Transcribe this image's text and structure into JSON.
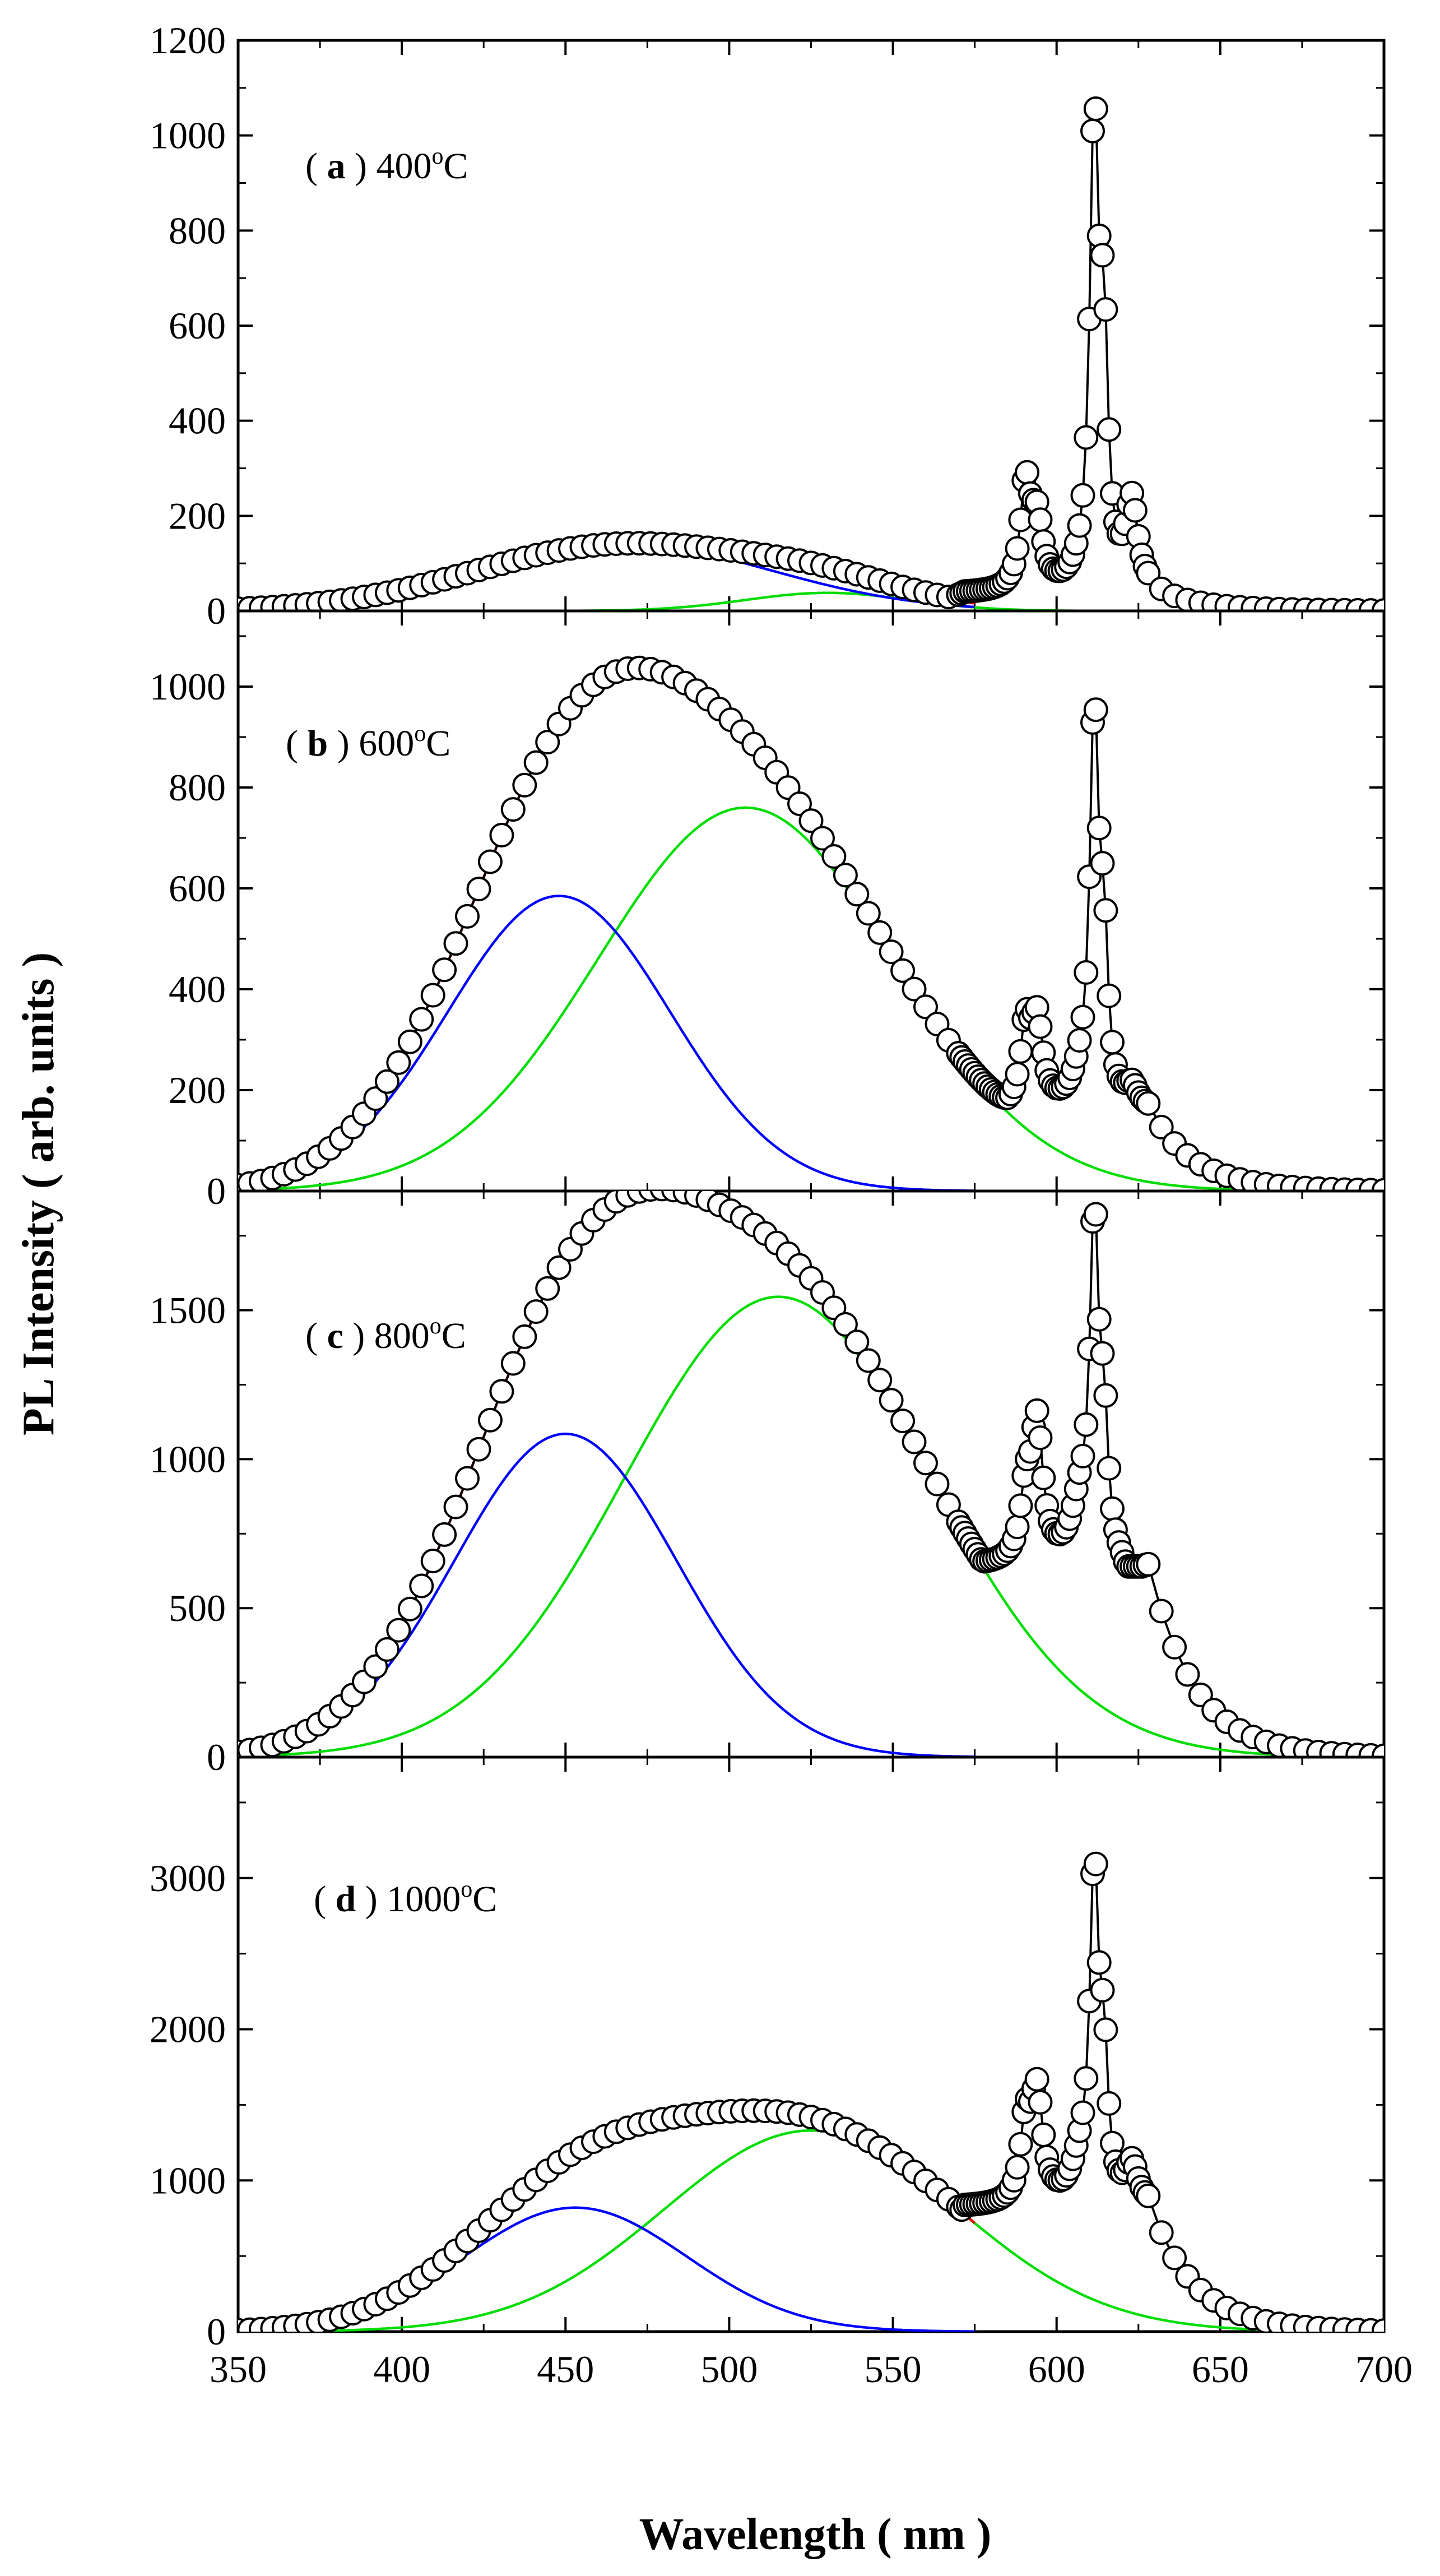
{
  "chart_data": {
    "type": "line",
    "title": "",
    "xlabel": "Wavelength ( nm )",
    "ylabel": "PL Intensity ( arb. units )",
    "xlim": [
      350,
      700
    ],
    "xticks": [
      350,
      400,
      450,
      500,
      550,
      600,
      650,
      700
    ],
    "xtick_labels": [
      "350",
      "400",
      "450",
      "500",
      "550",
      "600",
      "650",
      "700"
    ],
    "colors": {
      "measured": "#000000",
      "fit_total": "#ff0000",
      "component_blue": "#0000ff",
      "component_green": "#00dd00"
    },
    "panels": [
      {
        "id": "a",
        "label_letter": "a",
        "label_temp": "400",
        "label_unit": "C",
        "label_deg": "o",
        "ylim": [
          0,
          1200
        ],
        "yticks": [
          0,
          200,
          400,
          600,
          800,
          1000,
          1200
        ],
        "ytick_labels": [
          "0",
          "200",
          "400",
          "600",
          "800",
          "1000",
          "1200"
        ],
        "gauss_blue": {
          "amplitude": 140,
          "center": 468,
          "sigma": 45
        },
        "gauss_green": {
          "amplitude": 38,
          "center": 530,
          "sigma": 25
        },
        "peaks": {
          "scale": 1,
          "base_red": 35,
          "p590": 250,
          "p612": 1020,
          "p615": 810,
          "p623": 215
        }
      },
      {
        "id": "b",
        "label_letter": "b",
        "label_temp": "600",
        "label_unit": "C",
        "label_deg": "o",
        "ylim": [
          0,
          1150
        ],
        "yticks": [
          0,
          200,
          400,
          600,
          800,
          1000
        ],
        "ytick_labels": [
          "0",
          "200",
          "400",
          "600",
          "800",
          "1000"
        ],
        "gauss_blue": {
          "amplitude": 585,
          "center": 448,
          "sigma": 34
        },
        "gauss_green": {
          "amplitude": 760,
          "center": 505,
          "sigma": 45
        },
        "peaks": {
          "scale": 1,
          "base_red": 155,
          "p590": 305,
          "p612": 940,
          "p615": 635,
          "p623": 195
        }
      },
      {
        "id": "c",
        "label_letter": "c",
        "label_temp": "800",
        "label_unit": "C",
        "label_deg": "o",
        "ylim": [
          0,
          1900
        ],
        "yticks": [
          0,
          500,
          1000,
          1500
        ],
        "ytick_labels": [
          "0",
          "500",
          "1000",
          "1500"
        ],
        "gauss_blue": {
          "amplitude": 1085,
          "center": 450,
          "sigma": 34
        },
        "gauss_green": {
          "amplitude": 1545,
          "center": 515,
          "sigma": 47
        },
        "peaks": {
          "scale": 1,
          "base_red": 640,
          "p590": 840,
          "p612": 1780,
          "p615": 1310,
          "p623": 560
        }
      },
      {
        "id": "d",
        "label_letter": "d",
        "label_temp": "1000",
        "label_unit": "C",
        "label_deg": "o",
        "ylim": [
          0,
          3800
        ],
        "yticks": [
          0,
          1000,
          2000,
          3000
        ],
        "ytick_labels": [
          "0",
          "1000",
          "2000",
          "3000"
        ],
        "gauss_blue": {
          "amplitude": 820,
          "center": 453,
          "sigma": 34
        },
        "gauss_green": {
          "amplitude": 1330,
          "center": 525,
          "sigma": 45
        },
        "peaks": {
          "scale": 1,
          "base_red": 820,
          "p590": 1300,
          "p612": 3010,
          "p615": 2220,
          "p623": 1070
        }
      }
    ]
  }
}
